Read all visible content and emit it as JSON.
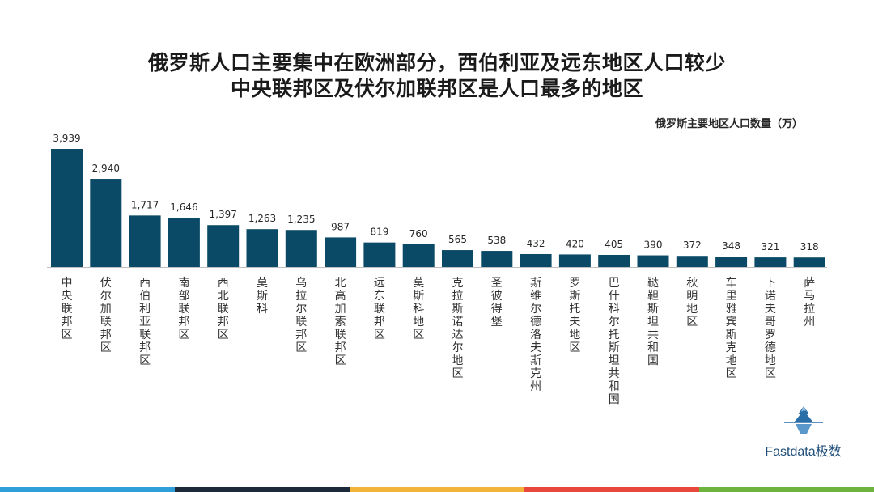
{
  "title_line1": "俄罗斯人口主要集中在欧洲部分，西伯利亚及远东地区人口较少",
  "title_line2": "中央联邦区及伏尔加联邦区是人口最多的地区",
  "logo_text": "Fastdata极数",
  "stripe_colors": [
    "#2e9fd8",
    "#1d2a3a",
    "#f2b53a",
    "#e8483b",
    "#6fb33f"
  ],
  "chart_data": {
    "type": "bar",
    "title": "俄罗斯主要地区人口数量（万）",
    "bar_color": "#0b4a66",
    "categories": [
      "中央联邦区",
      "伏尔加联邦区",
      "西伯利亚联邦区",
      "南部联邦区",
      "西北联邦区",
      "莫斯科",
      "乌拉尔联邦区",
      "北高加索联邦区",
      "远东联邦区",
      "莫斯科地区",
      "克拉斯诺达尔地区",
      "圣彼得堡",
      "斯维尔德洛夫斯克州",
      "罗斯托夫地区",
      "巴什科尔托斯坦共和国",
      "鞑靼斯坦共和国",
      "秋明地区",
      "车里雅宾斯克地区",
      "下诺夫哥罗德地区",
      "萨马拉州"
    ],
    "values": [
      3939,
      2940,
      1717,
      1646,
      1397,
      1263,
      1235,
      987,
      819,
      760,
      565,
      538,
      432,
      420,
      405,
      390,
      372,
      348,
      321,
      318
    ],
    "value_labels": [
      "3,939",
      "2,940",
      "1,717",
      "1,646",
      "1,397",
      "1,263",
      "1,235",
      "987",
      "819",
      "760",
      "565",
      "538",
      "432",
      "420",
      "405",
      "390",
      "372",
      "348",
      "321",
      "318"
    ],
    "ylim": [
      0,
      3939
    ]
  }
}
